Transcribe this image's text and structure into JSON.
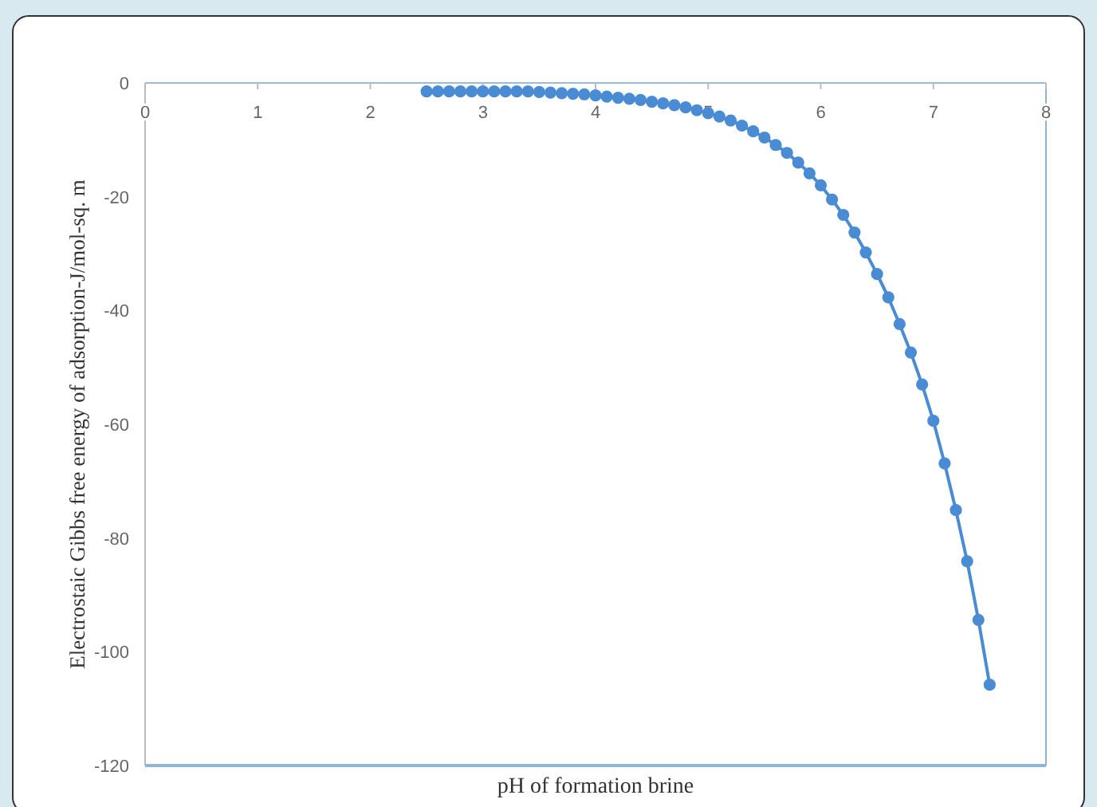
{
  "chart_data": {
    "type": "line",
    "xlabel": "pH of formation  brine",
    "ylabel": "Electrostaic  Gibbs free energy of adsorption-J/mol-sq. m",
    "xlim": [
      0,
      8
    ],
    "xticks": [
      0,
      1,
      2,
      3,
      4,
      5,
      6,
      7,
      8
    ],
    "ylim": [
      -120,
      0
    ],
    "yticks": [
      -120,
      -100,
      -80,
      -60,
      -40,
      -20,
      0
    ],
    "grid": false,
    "marker": "circle",
    "line_style": "solid",
    "series": [
      {
        "color": "#4a8cd4",
        "x": [
          2.5,
          2.6,
          2.7,
          2.8,
          2.9,
          3.0,
          3.1,
          3.2,
          3.3,
          3.4,
          3.5,
          3.6,
          3.7,
          3.8,
          3.9,
          4.0,
          4.1,
          4.2,
          4.3,
          4.4,
          4.5,
          4.6,
          4.7,
          4.8,
          4.9,
          5.0,
          5.1,
          5.2,
          5.3,
          5.4,
          5.5,
          5.6,
          5.7,
          5.8,
          5.9,
          6.0,
          6.1,
          6.2,
          6.3,
          6.4,
          6.5,
          6.6,
          6.7,
          6.8,
          6.9,
          7.0,
          7.1,
          7.2,
          7.3,
          7.4,
          7.5
        ],
        "values": [
          -1.5,
          -1.5,
          -1.5,
          -1.5,
          -1.5,
          -1.5,
          -1.5,
          -1.5,
          -1.5,
          -1.5,
          -1.6,
          -1.7,
          -1.8,
          -1.9,
          -2.0,
          -2.2,
          -2.4,
          -2.6,
          -2.8,
          -3.0,
          -3.3,
          -3.6,
          -3.9,
          -4.3,
          -4.8,
          -5.3,
          -5.9,
          -6.6,
          -7.5,
          -8.5,
          -9.6,
          -10.9,
          -12.3,
          -14.0,
          -15.9,
          -18.0,
          -20.5,
          -23.2,
          -26.3,
          -29.8,
          -33.6,
          -37.7,
          -42.4,
          -47.4,
          -53.0,
          -59.4,
          -66.9,
          -75.1,
          -84.1,
          -94.4,
          -105.8
        ]
      }
    ]
  }
}
